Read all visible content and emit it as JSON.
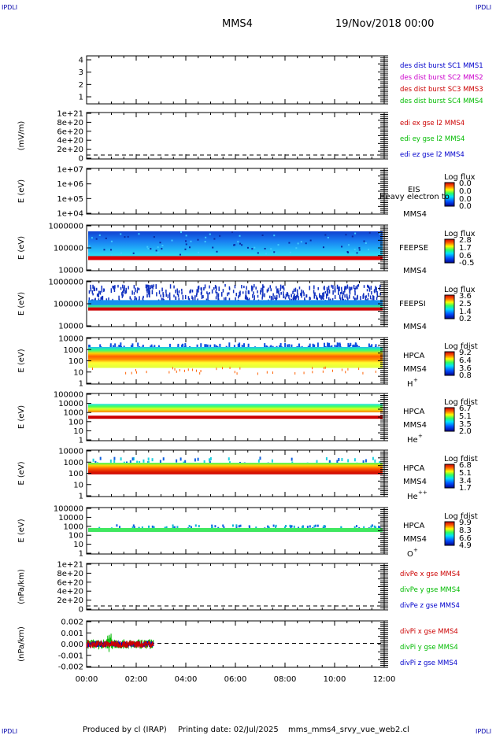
{
  "header": {
    "corner_label": "IPDLI",
    "spacecraft": "MMS4",
    "date": "19/Nov/2018 00:00"
  },
  "footer": {
    "produced_by": "Produced by cl (IRAP)",
    "printing_date": "Printing date: 02/Jul/2025",
    "filename": "mms_mms4_srvy_vue_web2.cl"
  },
  "colors": {
    "mms1": "#0000cc",
    "mms2": "#cc00cc",
    "mms3": "#cc0000",
    "mms4": "#00bb00"
  },
  "chart_data": [
    {
      "type": "line",
      "ylabel": "",
      "yticks": [
        "4",
        "3",
        "2",
        "1"
      ],
      "legend": [
        "des dist burst SC1 MMS1",
        "des dist burst SC2 MMS2",
        "des dist burst SC3 MMS3",
        "des dist burst SC4 MMS4"
      ],
      "legend_colors": [
        "#0000cc",
        "#cc00cc",
        "#cc0000",
        "#00bb00"
      ]
    },
    {
      "type": "line",
      "ylabel": "(mV/m)",
      "yticks": [
        "1e+21",
        "8e+20",
        "6e+20",
        "4e+20",
        "2e+20",
        "0"
      ],
      "legend": [
        "edi ex gse l2 MMS4",
        "edi ey gse l2 MMS4",
        "edi ez gse l2 MMS4"
      ],
      "legend_colors": [
        "#cc0000",
        "#00bb00",
        "#0000cc"
      ]
    },
    {
      "type": "heatmap",
      "ylabel": "E (eV)",
      "yticks": [
        "1e+07",
        "1e+06",
        "1e+05",
        "1e+04"
      ],
      "instrument": "EIS",
      "spacecraft": "MMS4",
      "overlay_text": "Heavy electron to",
      "colorbar_title": "Log flux",
      "colorbar_ticks": [
        "0.0",
        "0.0",
        "0.0",
        "0.0"
      ]
    },
    {
      "type": "heatmap",
      "ylabel": "E (eV)",
      "yticks": [
        "1000000",
        "100000",
        "10000"
      ],
      "instrument": "FEEPSE",
      "spacecraft": "MMS4",
      "colorbar_title": "Log flux",
      "colorbar_ticks": [
        "2.8",
        "1.7",
        "0.6",
        "-0.5"
      ]
    },
    {
      "type": "heatmap",
      "ylabel": "E (eV)",
      "yticks": [
        "1000000",
        "100000",
        "10000"
      ],
      "instrument": "FEEPSI",
      "spacecraft": "MMS4",
      "colorbar_title": "Log flux",
      "colorbar_ticks": [
        "3.6",
        "2.5",
        "1.4",
        "0.2"
      ]
    },
    {
      "type": "heatmap",
      "ylabel": "E (eV)",
      "yticks": [
        "10000",
        "1000",
        "100",
        "10",
        "1"
      ],
      "instrument": "HPCA",
      "spacecraft": "MMS4",
      "species": "H",
      "species_charge": "+",
      "colorbar_title": "Log fdist",
      "colorbar_ticks": [
        "9.2",
        "6.4",
        "3.6",
        "0.8"
      ]
    },
    {
      "type": "heatmap",
      "ylabel": "E (eV)",
      "yticks": [
        "100000",
        "10000",
        "1000",
        "100",
        "10",
        "1"
      ],
      "instrument": "HPCA",
      "spacecraft": "MMS4",
      "species": "He",
      "species_charge": "+",
      "colorbar_title": "Log fdist",
      "colorbar_ticks": [
        "6.7",
        "5.1",
        "3.5",
        "2.0"
      ]
    },
    {
      "type": "heatmap",
      "ylabel": "E (eV)",
      "yticks": [
        "10000",
        "1000",
        "100",
        "10",
        "1"
      ],
      "instrument": "HPCA",
      "spacecraft": "MMS4",
      "species": "He",
      "species_charge": "++",
      "colorbar_title": "Log fdist",
      "colorbar_ticks": [
        "6.8",
        "5.1",
        "3.4",
        "1.7"
      ]
    },
    {
      "type": "heatmap",
      "ylabel": "E (eV)",
      "yticks": [
        "100000",
        "10000",
        "1000",
        "100",
        "10",
        "1"
      ],
      "instrument": "HPCA",
      "spacecraft": "MMS4",
      "species": "O",
      "species_charge": "+",
      "colorbar_title": "Log fdist",
      "colorbar_ticks": [
        "9.9",
        "8.3",
        "6.6",
        "4.9"
      ]
    },
    {
      "type": "line",
      "ylabel": "(nPa/km)",
      "yticks": [
        "1e+21",
        "8e+20",
        "6e+20",
        "4e+20",
        "2e+20",
        "0"
      ],
      "legend": [
        "divPe x gse MMS4",
        "divPe y gse MMS4",
        "divPe z gse MMS4"
      ],
      "legend_colors": [
        "#cc0000",
        "#00bb00",
        "#0000cc"
      ]
    },
    {
      "type": "line",
      "ylabel": "(nPa/km)",
      "yticks": [
        "0.002",
        "0.001",
        "0.000",
        "-0.001",
        "-0.002"
      ],
      "ylim": [
        -0.0025,
        0.0025
      ],
      "legend": [
        "divPi x gse MMS4",
        "divPi y gse MMS4",
        "divPi z gse MMS4"
      ],
      "legend_colors": [
        "#cc0000",
        "#00bb00",
        "#0000cc"
      ],
      "series": [
        {
          "name": "divPi x gse MMS4",
          "x_range_hours": [
            0,
            2.7
          ],
          "mean": 0.0,
          "amplitude": 0.0004
        },
        {
          "name": "divPi y gse MMS4",
          "x_range_hours": [
            0,
            2.7
          ],
          "mean": 0.0,
          "amplitude": 0.0005
        },
        {
          "name": "divPi z gse MMS4",
          "x_range_hours": [
            0,
            2.7
          ],
          "mean": 0.0,
          "amplitude": 0.0003
        }
      ]
    }
  ],
  "x_axis": {
    "ticks": [
      "00:00",
      "02:00",
      "04:00",
      "06:00",
      "08:00",
      "10:00",
      "12:00"
    ],
    "range_hours": [
      0,
      12
    ]
  }
}
